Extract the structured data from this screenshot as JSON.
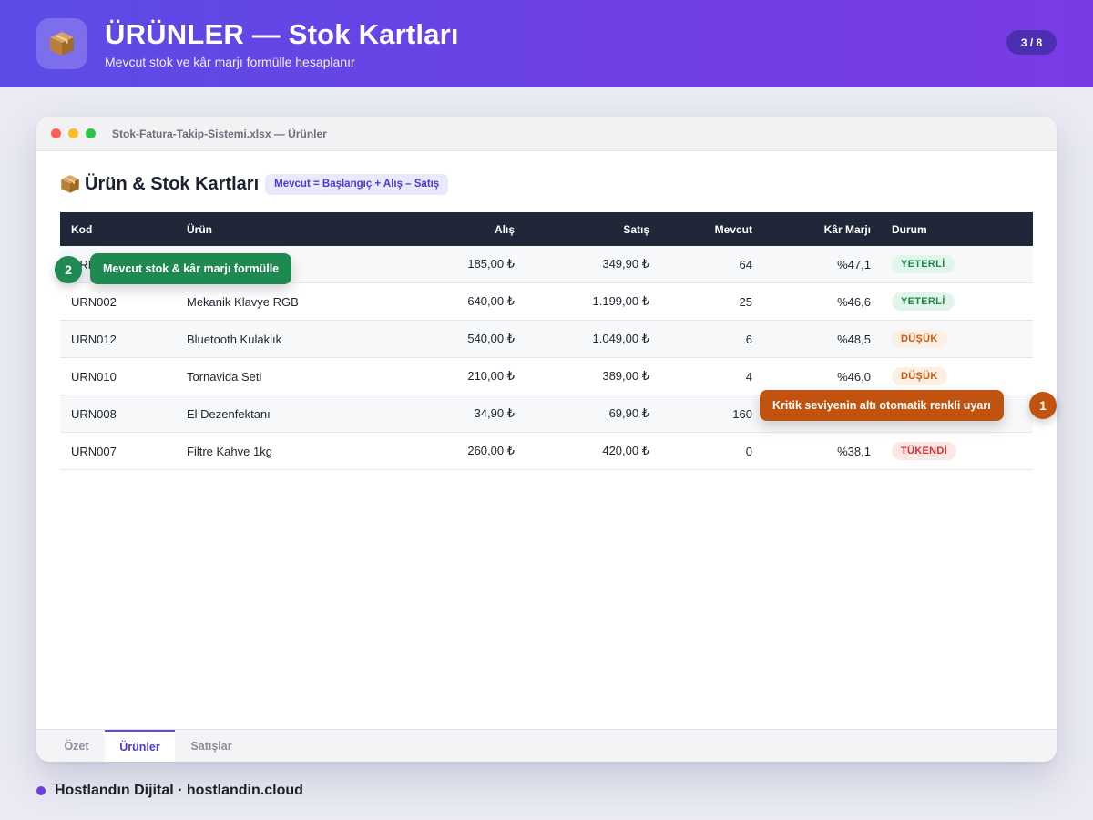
{
  "header": {
    "title": "ÜRÜNLER — Stok Kartları",
    "subtitle": "Mevcut stok ve kâr marjı formülle hesaplanır",
    "page_counter": "3 / 8",
    "logo_icon": "package-icon"
  },
  "window": {
    "title": "Stok-Fatura-Takip-Sistemi.xlsx — Ürünler"
  },
  "sheet": {
    "heading": "Ürün & Stok Kartları",
    "heading_icon": "package-icon",
    "formula": "Mevcut = Başlangıç + Alış – Satış"
  },
  "table": {
    "columns": [
      "Kod",
      "Ürün",
      "Alış",
      "Satış",
      "Mevcut",
      "Kâr Marjı",
      "Durum"
    ],
    "rows": [
      {
        "kod": "URN001",
        "urun": "",
        "alis": "185,00 ₺",
        "satis": "349,90 ₺",
        "mevcut": "64",
        "marj": "%47,1",
        "durum": "YETERLİ",
        "status": "ok"
      },
      {
        "kod": "URN002",
        "urun": "Mekanik Klavye RGB",
        "alis": "640,00 ₺",
        "satis": "1.199,00 ₺",
        "mevcut": "25",
        "marj": "%46,6",
        "durum": "YETERLİ",
        "status": "ok"
      },
      {
        "kod": "URN012",
        "urun": "Bluetooth Kulaklık",
        "alis": "540,00 ₺",
        "satis": "1.049,00 ₺",
        "mevcut": "6",
        "marj": "%48,5",
        "durum": "DÜŞÜK",
        "status": "low"
      },
      {
        "kod": "URN010",
        "urun": "Tornavida Seti",
        "alis": "210,00 ₺",
        "satis": "389,00 ₺",
        "mevcut": "4",
        "marj": "%46,0",
        "durum": "DÜŞÜK",
        "status": "low"
      },
      {
        "kod": "URN008",
        "urun": "El Dezenfektanı",
        "alis": "34,90 ₺",
        "satis": "69,90 ₺",
        "mevcut": "160",
        "marj": "",
        "durum": "",
        "status": ""
      },
      {
        "kod": "URN007",
        "urun": "Filtre Kahve 1kg",
        "alis": "260,00 ₺",
        "satis": "420,00 ₺",
        "mevcut": "0",
        "marj": "%38,1",
        "durum": "TÜKENDİ",
        "status": "out"
      }
    ]
  },
  "callouts": {
    "one": {
      "number": "1",
      "text": "Kritik seviyenin altı otomatik renkli uyarı"
    },
    "two": {
      "number": "2",
      "text": "Mevcut stok & kâr marjı formülle"
    }
  },
  "tabs": [
    "Özet",
    "Ürünler",
    "Satışlar"
  ],
  "active_tab": "Ürünler",
  "footer": {
    "text": "Hostlandın Dijital · hostlandin.cloud"
  },
  "colors": {
    "accent": "#5b4ce6",
    "header_bg": "#1f2738",
    "status_ok": "#1b8a4c",
    "status_low": "#c15a14",
    "status_out": "#d22f2f",
    "callout_green": "#1e8a52",
    "callout_orange": "#c0530f"
  }
}
